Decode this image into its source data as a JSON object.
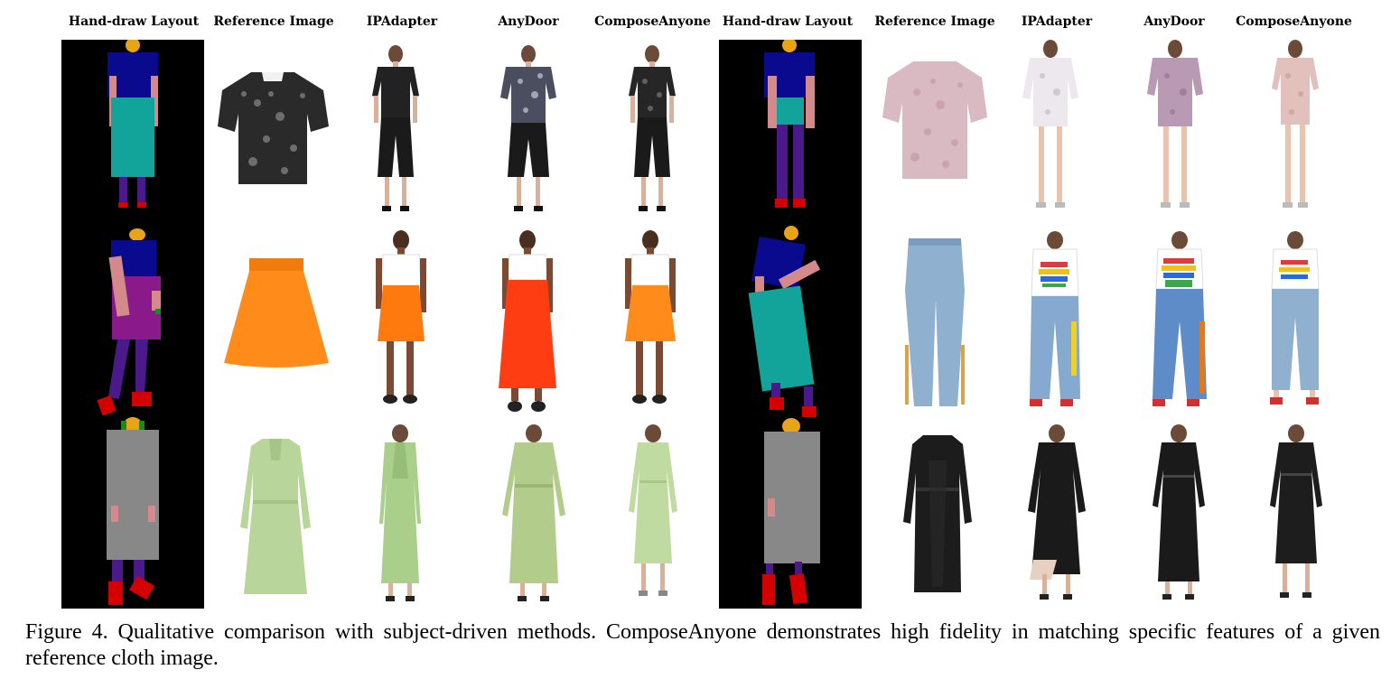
{
  "columns": [
    "Hand-draw Layout",
    "Reference Image",
    "IPAdapter",
    "AnyDoor",
    "ComposeAnyone",
    "Hand-draw Layout",
    "Reference Image",
    "IPAdapter",
    "AnyDoor",
    "ComposeAnyone"
  ],
  "caption": "Figure 4. Qualitative comparison with subject-driven methods. ComposeAnyone demonstrates high fidelity in matching specific features of a given reference cloth image."
}
